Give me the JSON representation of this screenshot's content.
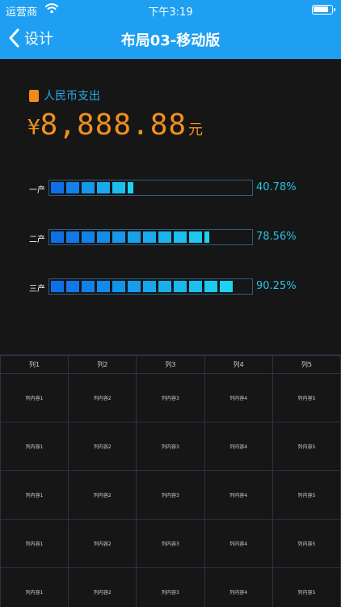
{
  "status_bar": {
    "carrier": "运营商",
    "time": "下午3:19"
  },
  "nav": {
    "back_label": "设计",
    "title": "布局03-移动版"
  },
  "summary": {
    "label": "人民币支出",
    "currency_symbol": "¥",
    "amount": "8,888.88",
    "unit": "元"
  },
  "bars": [
    {
      "label": "一产",
      "percent_text": "40.78%",
      "value": 0.4078
    },
    {
      "label": "二产",
      "percent_text": "78.56%",
      "value": 0.7856
    },
    {
      "label": "三产",
      "percent_text": "90.25%",
      "value": 0.9025
    }
  ],
  "table": {
    "headers": [
      "列1",
      "列2",
      "列3",
      "列4",
      "列5"
    ],
    "rows": [
      [
        "列内容1",
        "列内容2",
        "列内容3",
        "列内容4",
        "列内容5"
      ],
      [
        "列内容1",
        "列内容2",
        "列内容3",
        "列内容4",
        "列内容5"
      ],
      [
        "列内容1",
        "列内容2",
        "列内容3",
        "列内容4",
        "列内容5"
      ],
      [
        "列内容1",
        "列内容2",
        "列内容3",
        "列内容4",
        "列内容5"
      ],
      [
        "列内容1",
        "列内容2",
        "列内容3",
        "列内容4",
        "列内容5"
      ]
    ]
  },
  "colors": {
    "header_bg": "#1e9ff2",
    "page_bg": "#161616",
    "amount": "#f0901e",
    "label_accent": "#2aa9e8",
    "percent": "#27c4e0",
    "bar_start": "#0e6fe6",
    "bar_end": "#1fd2f0"
  }
}
